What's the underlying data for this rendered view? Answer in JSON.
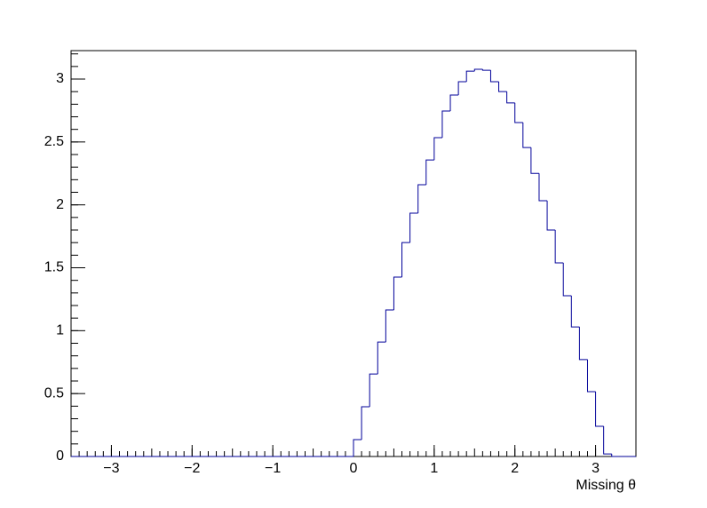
{
  "chart_data": {
    "type": "histogram",
    "x_label": "Missing  θ",
    "bins": [
      -3.5,
      -3.4,
      -3.3,
      -3.2,
      -3.1,
      -3.0,
      -2.9,
      -2.8,
      -2.7,
      -2.6,
      -2.5,
      -2.4,
      -2.3,
      -2.2,
      -2.1,
      -2.0,
      -1.9,
      -1.8,
      -1.7,
      -1.6,
      -1.5,
      -1.4,
      -1.3,
      -1.2,
      -1.1,
      -1.0,
      -0.9,
      -0.8,
      -0.7,
      -0.6,
      -0.5,
      -0.4,
      -0.3,
      -0.2,
      -0.1,
      0.0,
      0.1,
      0.2,
      0.3,
      0.4,
      0.5,
      0.6,
      0.7,
      0.8,
      0.9,
      1.0,
      1.1,
      1.2,
      1.3,
      1.4,
      1.5,
      1.6,
      1.7,
      1.8,
      1.9,
      2.0,
      2.1,
      2.2,
      2.3,
      2.4,
      2.5,
      2.6,
      2.7,
      2.8,
      2.9,
      3.0,
      3.1,
      3.2,
      3.3,
      3.4,
      3.5
    ],
    "counts": [
      0,
      0,
      0,
      0,
      0,
      0,
      0,
      0,
      0,
      0,
      0,
      0,
      0,
      0,
      0,
      0,
      0,
      0,
      0,
      0,
      0,
      0,
      0,
      0,
      0,
      0,
      0,
      0,
      0,
      0,
      0,
      0,
      0,
      0,
      0,
      0.134,
      0.395,
      0.656,
      0.91,
      1.165,
      1.426,
      1.7,
      1.934,
      2.16,
      2.357,
      2.534,
      2.746,
      2.873,
      2.979,
      3.063,
      3.078,
      3.07,
      2.979,
      2.9,
      2.81,
      2.654,
      2.456,
      2.25,
      2.033,
      1.8,
      1.539,
      1.278,
      1.03,
      0.77,
      0.515,
      0.24,
      0.02,
      0,
      0,
      0,
      0
    ],
    "color": "#000099",
    "xlim": [
      -3.5,
      3.5
    ],
    "ylim": [
      0,
      3.226
    ],
    "xticks": [
      {
        "value": -3,
        "label": "−3"
      },
      {
        "value": -2,
        "label": "−2"
      },
      {
        "value": -1,
        "label": "−1"
      },
      0,
      1,
      2,
      3
    ],
    "yticks": [
      0,
      0.5,
      1,
      1.5,
      2,
      2.5,
      3
    ]
  }
}
